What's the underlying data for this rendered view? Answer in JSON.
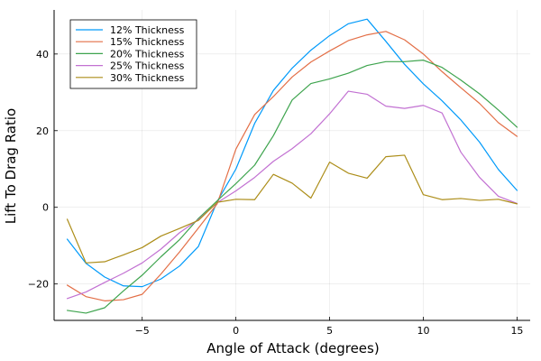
{
  "chart_data": {
    "type": "line",
    "title": "",
    "xlabel": "Angle of Attack (degrees)",
    "ylabel": "Lift To Drag Ratio",
    "xlim": [
      -9.7,
      15.7
    ],
    "ylim": [
      -29.5,
      51.5
    ],
    "xticks": [
      -5,
      0,
      5,
      10,
      15
    ],
    "yticks": [
      -20,
      0,
      20,
      40
    ],
    "xtick_labels": [
      "−5",
      "0",
      "5",
      "10",
      "15"
    ],
    "ytick_labels": [
      "−20",
      "0",
      "20",
      "40"
    ],
    "x": [
      -9,
      -8,
      -7,
      -6,
      -5,
      -4,
      -3,
      -2,
      -1,
      0,
      1,
      2,
      3,
      4,
      5,
      6,
      7,
      8,
      9,
      10,
      11,
      12,
      13,
      14,
      15
    ],
    "grid": true,
    "legend_position": "top-left",
    "series": [
      {
        "name": "12% Thickness",
        "color": "#009AFA",
        "values": [
          -8.3,
          -14.6,
          -18.2,
          -20.5,
          -20.7,
          -18.7,
          -15.3,
          -10.2,
          1.5,
          10.0,
          21.9,
          30.5,
          36.3,
          41.0,
          44.8,
          47.9,
          49.1,
          43.3,
          37.3,
          32.2,
          27.8,
          22.8,
          17.0,
          9.9,
          4.4
        ]
      },
      {
        "name": "15% Thickness",
        "color": "#E36F47",
        "values": [
          -20.3,
          -23.3,
          -24.4,
          -24.1,
          -22.7,
          -17.4,
          -11.6,
          -5.4,
          0.9,
          15.2,
          24.2,
          28.9,
          34.0,
          37.9,
          40.8,
          43.5,
          45.0,
          45.9,
          43.7,
          40.0,
          35.4,
          31.2,
          27.1,
          22.1,
          18.5
        ]
      },
      {
        "name": "20% Thickness",
        "color": "#3EA44E",
        "values": [
          -26.9,
          -27.6,
          -26.2,
          -21.8,
          -17.7,
          -12.9,
          -8.4,
          -2.9,
          1.7,
          6.2,
          11.0,
          18.7,
          28.0,
          32.3,
          33.5,
          35.0,
          37.0,
          38.0,
          38.0,
          38.4,
          36.5,
          33.2,
          29.6,
          25.4,
          20.9
        ]
      },
      {
        "name": "25% Thickness",
        "color": "#C271D2",
        "values": [
          -23.8,
          -22.1,
          -19.6,
          -17.2,
          -14.5,
          -10.9,
          -6.6,
          -3.2,
          1.2,
          4.3,
          7.8,
          12.0,
          15.3,
          19.2,
          24.4,
          30.3,
          29.5,
          26.4,
          25.8,
          26.6,
          24.6,
          14.4,
          7.8,
          2.9,
          1.0
        ]
      },
      {
        "name": "30% Thickness",
        "color": "#AC8D18",
        "values": [
          -3.1,
          -14.5,
          -14.2,
          -12.4,
          -10.5,
          -7.5,
          -5.5,
          -3.4,
          1.3,
          2.1,
          2.0,
          8.6,
          6.3,
          2.4,
          11.8,
          8.9,
          7.6,
          13.2,
          13.6,
          3.3,
          2.0,
          2.3,
          1.8,
          2.1,
          0.9
        ]
      }
    ]
  }
}
